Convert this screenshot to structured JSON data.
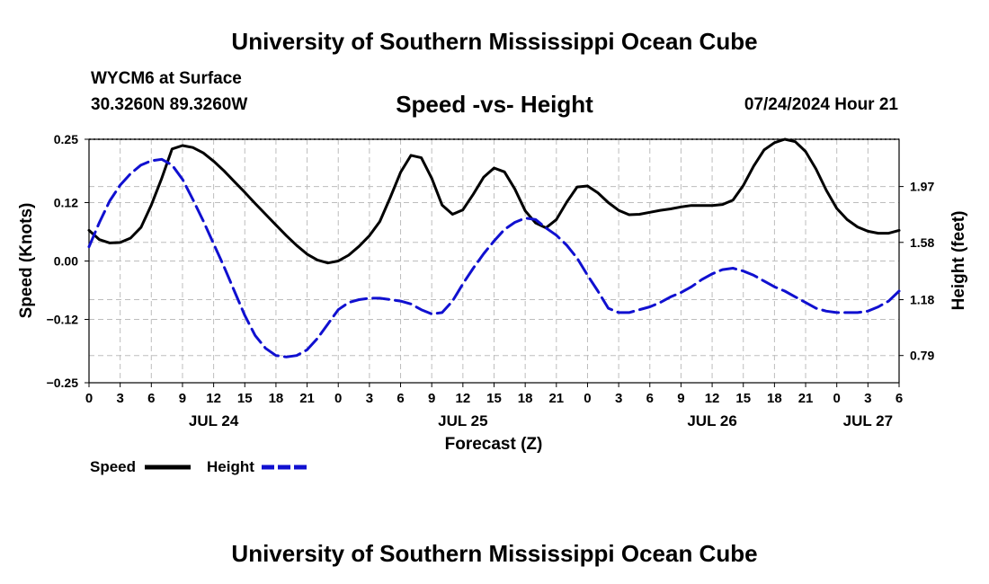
{
  "header": {
    "title": "University of Southern Mississippi Ocean Cube",
    "station": "WYCM6 at Surface",
    "coords": "30.3260N  89.3260W",
    "subtitle": "Speed -vs- Height",
    "datetime": "07/24/2024 Hour 21"
  },
  "footer": {
    "title": "University of Southern Mississippi Ocean Cube"
  },
  "chart_data": {
    "type": "line",
    "title": "Speed -vs- Height",
    "xlabel": "Forecast (Z)",
    "ylabel_left": "Speed (Knots)",
    "ylabel_right": "Height (feet)",
    "x_range": [
      0,
      78
    ],
    "x_tick_step": 3,
    "x_tick_labels": [
      "0",
      "3",
      "6",
      "9",
      "12",
      "15",
      "18",
      "21",
      "0",
      "3",
      "6",
      "9",
      "12",
      "15",
      "18",
      "21",
      "0",
      "3",
      "6",
      "9",
      "12",
      "15",
      "18",
      "21",
      "0",
      "3",
      "6"
    ],
    "date_labels": [
      {
        "label": "JUL 24",
        "x": 12
      },
      {
        "label": "JUL 25",
        "x": 36
      },
      {
        "label": "JUL 26",
        "x": 60
      },
      {
        "label": "JUL 27",
        "x": 75
      }
    ],
    "y_left": {
      "range": [
        -0.25,
        0.25
      ],
      "ticks": [
        -0.25,
        -0.12,
        0.0,
        0.12,
        0.25
      ],
      "tick_labels": [
        "−0.25",
        "−0.12",
        "0.00",
        "0.12",
        "0.25"
      ]
    },
    "y_right": {
      "range": [
        0.6,
        2.3
      ],
      "ticks": [
        0.79,
        1.18,
        1.58,
        1.97
      ],
      "tick_labels": [
        "0.79",
        "1.18",
        "1.58",
        "1.97"
      ]
    },
    "grid": true,
    "series": [
      {
        "name": "Speed",
        "axis": "left",
        "color": "#000000",
        "style": "solid",
        "x": [
          0,
          1,
          2,
          3,
          4,
          5,
          6,
          7,
          8,
          9,
          10,
          11,
          12,
          13,
          14,
          15,
          16,
          17,
          18,
          19,
          20,
          21,
          22,
          23,
          24,
          25,
          26,
          27,
          28,
          29,
          30,
          31,
          32,
          33,
          34,
          35,
          36,
          37,
          38,
          39,
          40,
          41,
          42,
          43,
          44,
          45,
          46,
          47,
          48,
          49,
          50,
          51,
          52,
          53,
          54,
          55,
          56,
          57,
          58,
          59,
          60,
          61,
          62,
          63,
          64,
          65,
          66,
          67,
          68,
          69,
          70,
          71,
          72,
          73,
          74,
          75,
          76,
          77,
          78
        ],
        "values": [
          0.063,
          0.044,
          0.037,
          0.038,
          0.047,
          0.069,
          0.115,
          0.17,
          0.23,
          0.237,
          0.233,
          0.222,
          0.205,
          0.185,
          0.163,
          0.141,
          0.118,
          0.096,
          0.074,
          0.052,
          0.032,
          0.014,
          0.002,
          -0.004,
          0.0,
          0.012,
          0.03,
          0.052,
          0.081,
          0.13,
          0.182,
          0.217,
          0.212,
          0.17,
          0.115,
          0.096,
          0.105,
          0.137,
          0.172,
          0.191,
          0.183,
          0.148,
          0.103,
          0.078,
          0.068,
          0.085,
          0.121,
          0.152,
          0.154,
          0.14,
          0.12,
          0.104,
          0.095,
          0.096,
          0.1,
          0.104,
          0.107,
          0.111,
          0.114,
          0.114,
          0.114,
          0.116,
          0.125,
          0.155,
          0.195,
          0.228,
          0.243,
          0.25,
          0.245,
          0.225,
          0.189,
          0.145,
          0.108,
          0.085,
          0.07,
          0.061,
          0.057,
          0.057,
          0.063
        ]
      },
      {
        "name": "Height",
        "axis": "right",
        "color": "#1010d0",
        "style": "dashed",
        "x": [
          0,
          1,
          2,
          3,
          4,
          5,
          6,
          7,
          8,
          9,
          10,
          11,
          12,
          13,
          14,
          15,
          16,
          17,
          18,
          19,
          20,
          21,
          22,
          23,
          24,
          25,
          26,
          27,
          28,
          29,
          30,
          31,
          32,
          33,
          34,
          35,
          36,
          37,
          38,
          39,
          40,
          41,
          42,
          43,
          44,
          45,
          46,
          47,
          48,
          49,
          50,
          51,
          52,
          53,
          54,
          55,
          56,
          57,
          58,
          59,
          60,
          61,
          62,
          63,
          64,
          65,
          66,
          67,
          68,
          69,
          70,
          71,
          72,
          73,
          74,
          75,
          76,
          77,
          78
        ],
        "values": [
          1.55,
          1.72,
          1.87,
          1.98,
          2.06,
          2.12,
          2.15,
          2.16,
          2.12,
          2.02,
          1.88,
          1.73,
          1.57,
          1.41,
          1.24,
          1.07,
          0.93,
          0.84,
          0.79,
          0.78,
          0.79,
          0.83,
          0.91,
          1.01,
          1.11,
          1.16,
          1.18,
          1.19,
          1.19,
          1.18,
          1.17,
          1.15,
          1.11,
          1.08,
          1.09,
          1.17,
          1.29,
          1.4,
          1.5,
          1.59,
          1.67,
          1.72,
          1.75,
          1.74,
          1.68,
          1.63,
          1.56,
          1.47,
          1.35,
          1.24,
          1.12,
          1.09,
          1.09,
          1.11,
          1.13,
          1.16,
          1.2,
          1.23,
          1.27,
          1.32,
          1.36,
          1.39,
          1.4,
          1.38,
          1.35,
          1.31,
          1.27,
          1.24,
          1.2,
          1.16,
          1.12,
          1.1,
          1.09,
          1.09,
          1.09,
          1.1,
          1.13,
          1.17,
          1.24
        ]
      }
    ],
    "legend": [
      {
        "label": "Speed",
        "color": "#000000",
        "style": "solid"
      },
      {
        "label": "Height",
        "color": "#1010d0",
        "style": "dashed"
      }
    ],
    "legend_position": "bottom-left"
  }
}
